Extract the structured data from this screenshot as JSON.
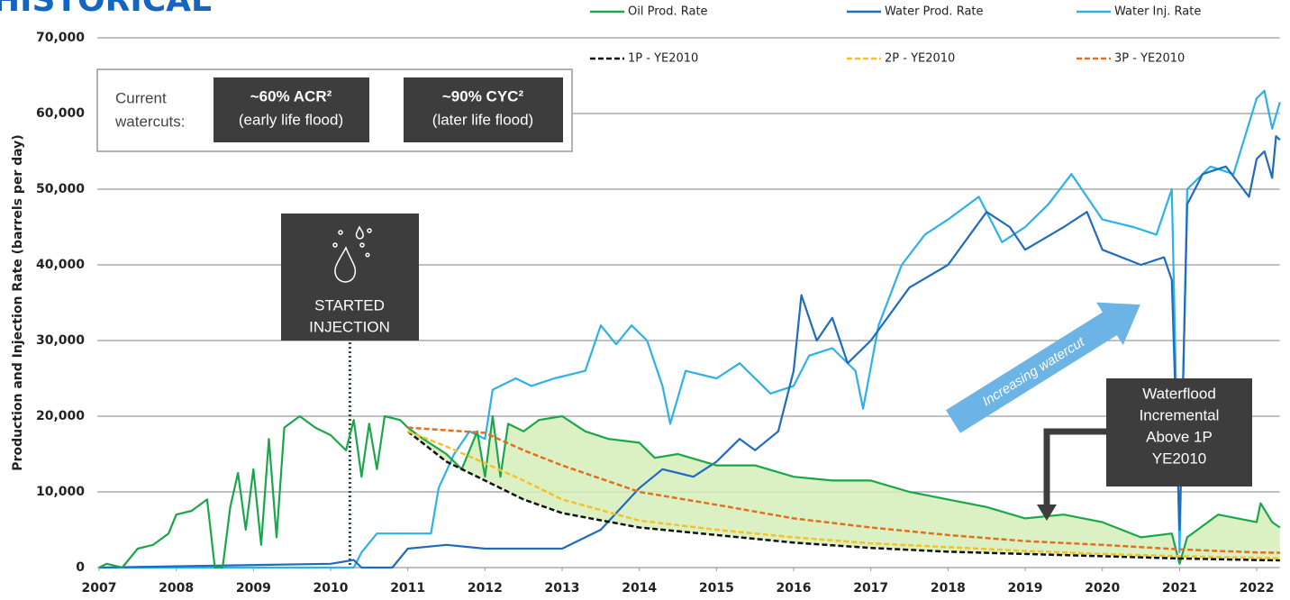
{
  "chart_data": {
    "type": "line",
    "title": "HISTORICAL",
    "y_label": "Production and Injection Rate (barrels per day)",
    "xlim": [
      2007,
      2022.3
    ],
    "xticks": [
      2007,
      2008,
      2009,
      2010,
      2011,
      2012,
      2013,
      2014,
      2015,
      2016,
      2017,
      2018,
      2019,
      2020,
      2021,
      2022
    ],
    "ylim": [
      0,
      70000
    ],
    "yticks": [
      0,
      {
        "value": 10000,
        "label": "10,000"
      },
      {
        "value": 20000,
        "label": "20,000"
      },
      {
        "value": 30000,
        "label": "30,000"
      },
      {
        "value": 40000,
        "label": "40,000"
      },
      {
        "value": 50000,
        "label": "50,000"
      },
      {
        "value": 60000,
        "label": "60,000"
      },
      {
        "value": 70000,
        "label": "70,000"
      }
    ],
    "grid": true,
    "series": [
      {
        "name": "Oil Prod. Rate",
        "color": "#1aa64a",
        "style": "solid",
        "x": [
          2007,
          2007.1,
          2007.3,
          2007.5,
          2007.7,
          2007.9,
          2008.0,
          2008.2,
          2008.4,
          2008.5,
          2008.6,
          2008.7,
          2008.8,
          2008.9,
          2009.0,
          2009.1,
          2009.2,
          2009.3,
          2009.4,
          2009.6,
          2009.8,
          2010.0,
          2010.2,
          2010.3,
          2010.4,
          2010.5,
          2010.6,
          2010.7,
          2010.9,
          2011.0,
          2011.2,
          2011.5,
          2011.7,
          2011.9,
          2012.0,
          2012.1,
          2012.2,
          2012.3,
          2012.5,
          2012.7,
          2013.0,
          2013.3,
          2013.6,
          2014.0,
          2014.2,
          2014.5,
          2015.0,
          2015.5,
          2016.0,
          2016.5,
          2017.0,
          2017.5,
          2018.0,
          2018.5,
          2019.0,
          2019.5,
          2020.0,
          2020.5,
          2020.9,
          2021.0,
          2021.1,
          2021.5,
          2022.0,
          2022.05,
          2022.2,
          2022.3
        ],
        "values": [
          0,
          500,
          0,
          2500,
          3000,
          4500,
          7000,
          7500,
          9000,
          0,
          0,
          8000,
          12500,
          5000,
          13000,
          3000,
          17000,
          4000,
          18500,
          20000,
          18500,
          17500,
          15500,
          19500,
          12000,
          19000,
          13000,
          20000,
          19500,
          18500,
          17000,
          15000,
          13000,
          18000,
          12000,
          20000,
          12000,
          19000,
          18000,
          19500,
          20000,
          18000,
          17000,
          16500,
          14500,
          15000,
          13500,
          13500,
          12000,
          11500,
          11500,
          10000,
          9000,
          8000,
          6500,
          7000,
          6000,
          4000,
          4500,
          500,
          4000,
          7000,
          6000,
          8500,
          6000,
          5300
        ]
      },
      {
        "name": "Water Prod. Rate",
        "color": "#1f6bbf",
        "style": "solid",
        "x": [
          2007,
          2010.0,
          2010.3,
          2010.4,
          2010.8,
          2011.0,
          2011.5,
          2012.0,
          2012.5,
          2013.0,
          2013.5,
          2014.0,
          2014.3,
          2014.7,
          2015.0,
          2015.3,
          2015.5,
          2015.8,
          2016.0,
          2016.1,
          2016.3,
          2016.5,
          2016.7,
          2017.0,
          2017.5,
          2018.0,
          2018.5,
          2018.8,
          2019.0,
          2019.5,
          2019.8,
          2020.0,
          2020.5,
          2020.8,
          2020.9,
          2021.0,
          2021.1,
          2021.3,
          2021.6,
          2021.9,
          2022.0,
          2022.1,
          2022.2,
          2022.25,
          2022.3
        ],
        "values": [
          0,
          500,
          1000,
          0,
          0,
          2500,
          3000,
          2500,
          2500,
          2500,
          5000,
          10500,
          13000,
          12000,
          14000,
          17000,
          15500,
          18000,
          26000,
          36000,
          30000,
          33000,
          27000,
          30000,
          37000,
          40000,
          47000,
          45000,
          42000,
          45000,
          47000,
          42000,
          40000,
          41000,
          38000,
          5000,
          48000,
          52000,
          53000,
          49000,
          54000,
          55000,
          51500,
          57000,
          56500
        ]
      },
      {
        "name": "Water Inj. Rate",
        "color": "#2eb0ea",
        "style": "solid",
        "x": [
          2007,
          2010.3,
          2010.4,
          2010.6,
          2011.0,
          2011.3,
          2011.4,
          2011.6,
          2011.8,
          2012.0,
          2012.1,
          2012.4,
          2012.6,
          2012.9,
          2013.3,
          2013.5,
          2013.7,
          2013.9,
          2014.1,
          2014.3,
          2014.4,
          2014.6,
          2015.0,
          2015.3,
          2015.7,
          2016.0,
          2016.2,
          2016.5,
          2016.8,
          2016.9,
          2017.1,
          2017.4,
          2017.7,
          2018.0,
          2018.4,
          2018.7,
          2019.0,
          2019.3,
          2019.6,
          2020.0,
          2020.4,
          2020.7,
          2020.9,
          2021.0,
          2021.1,
          2021.4,
          2021.7,
          2022.0,
          2022.1,
          2022.2,
          2022.3
        ],
        "values": [
          0,
          0,
          2000,
          4500,
          4500,
          4500,
          10500,
          15000,
          18000,
          17000,
          23500,
          25000,
          24000,
          25000,
          26000,
          32000,
          29500,
          32000,
          30000,
          24000,
          19000,
          26000,
          25000,
          27000,
          23000,
          24000,
          28000,
          29000,
          26000,
          21000,
          32000,
          40000,
          44000,
          46000,
          49000,
          43000,
          45000,
          48000,
          52000,
          46000,
          45000,
          44000,
          50000,
          2000,
          50000,
          53000,
          52000,
          62000,
          63000,
          58000,
          61500
        ]
      },
      {
        "name": "1P - YE2010",
        "color": "#111111",
        "style": "dashed",
        "x": [
          2011,
          2011.5,
          2012,
          2012.5,
          2013,
          2014,
          2015,
          2016,
          2017,
          2018,
          2019,
          2020,
          2021,
          2022,
          2022.3
        ],
        "values": [
          18000,
          14000,
          11500,
          9000,
          7200,
          5300,
          4300,
          3300,
          2600,
          2100,
          1800,
          1500,
          1200,
          1000,
          950
        ]
      },
      {
        "name": "2P - YE2010",
        "color": "#f5c02a",
        "style": "dashed",
        "x": [
          2011,
          2011.5,
          2012,
          2012.5,
          2013,
          2014,
          2015,
          2016,
          2017,
          2018,
          2019,
          2020,
          2021,
          2022,
          2022.3
        ],
        "values": [
          18000,
          16000,
          13800,
          11500,
          9000,
          6200,
          5000,
          4000,
          3200,
          2700,
          2200,
          1800,
          1500,
          1300,
          1250
        ]
      },
      {
        "name": "3P - YE2010",
        "color": "#e07020",
        "style": "dashed",
        "x": [
          2011,
          2012,
          2012.5,
          2013,
          2014,
          2015,
          2016,
          2017,
          2018,
          2019,
          2020,
          2021,
          2022,
          2022.3
        ],
        "values": [
          18500,
          17800,
          15500,
          13500,
          10000,
          8300,
          6500,
          5300,
          4300,
          3500,
          3000,
          2400,
          2000,
          1950
        ]
      }
    ],
    "annotations": {
      "watercuts": {
        "label": [
          "Current",
          "watercuts:"
        ],
        "acr": [
          "~60% ACR²",
          "(early life flood)"
        ],
        "cyc": [
          "~90% CYC²",
          "(later life flood)"
        ]
      },
      "injection": {
        "x": 2010.25,
        "label": [
          "STARTED",
          "INJECTION"
        ]
      },
      "trend": "Increasing watercut",
      "incremental": [
        "Waterflood",
        "Incremental",
        "Above 1P",
        "YE2010"
      ]
    }
  }
}
